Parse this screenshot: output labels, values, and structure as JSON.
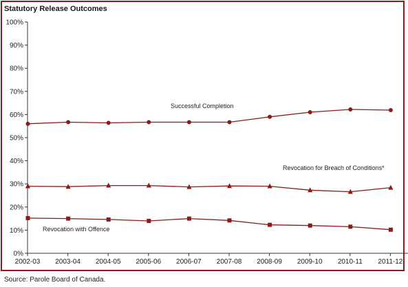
{
  "source_text": "Source:  Parole Board of Canada.",
  "chart_data": {
    "type": "line",
    "title": "Statutory Release Outcomes",
    "xlabel": "",
    "ylabel": "",
    "ylim": [
      0,
      100
    ],
    "y_ticks": [
      "0%",
      "10%",
      "20%",
      "30%",
      "40%",
      "50%",
      "60%",
      "70%",
      "80%",
      "90%",
      "100%"
    ],
    "categories": [
      "2002-03",
      "2003-04",
      "2004-05",
      "2005-06",
      "2006-07",
      "2007-08",
      "2008-09",
      "2009-10",
      "2010-11",
      "2011-12"
    ],
    "grid": false,
    "series": [
      {
        "name": "Successful Completion",
        "marker": "circle",
        "color": "#8b1a1a",
        "values": [
          56,
          56.7,
          56.4,
          56.7,
          56.7,
          56.7,
          59,
          61,
          62.2,
          61.9
        ]
      },
      {
        "name": "Revocation for Breach of Conditions*",
        "marker": "triangle",
        "color": "#8b1a1a",
        "values": [
          29,
          28.8,
          29.3,
          29.3,
          28.7,
          29.1,
          29,
          27.3,
          26.6,
          28.4
        ]
      },
      {
        "name": "Revocation with Offence",
        "marker": "square",
        "color": "#8b1a1a",
        "values": [
          15.2,
          15,
          14.6,
          14,
          15,
          14.2,
          12.3,
          12,
          11.5,
          10.2
        ]
      }
    ]
  }
}
